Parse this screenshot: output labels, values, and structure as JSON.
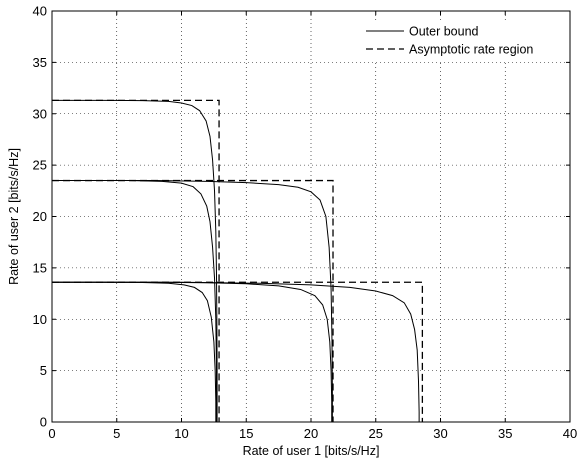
{
  "chart_data": {
    "type": "line",
    "title": "",
    "xlabel": "Rate of user 1 [bits/s/Hz]",
    "ylabel": "Rate of user 2 [bits/s/Hz]",
    "xlim": [
      0,
      40
    ],
    "ylim": [
      0,
      40
    ],
    "xticks": [
      0,
      5,
      10,
      15,
      20,
      25,
      30,
      35,
      40
    ],
    "yticks": [
      0,
      5,
      10,
      15,
      20,
      25,
      30,
      35,
      40
    ],
    "grid": true,
    "grid_style": "dotted",
    "legend_position": "top-right",
    "legend": [
      {
        "label": "Outer bound",
        "style": "solid"
      },
      {
        "label": "Asymptotic rate region",
        "style": "dashed"
      }
    ],
    "series": [
      {
        "style": "solid",
        "values": [
          [
            0,
            31.3
          ],
          [
            4,
            31.3
          ],
          [
            7,
            31.28
          ],
          [
            9,
            31.2
          ],
          [
            10,
            31.05
          ],
          [
            10.8,
            30.8
          ],
          [
            11.4,
            30.3
          ],
          [
            11.9,
            29.3
          ],
          [
            12.2,
            27.8
          ],
          [
            12.4,
            25.5
          ],
          [
            12.55,
            22.5
          ],
          [
            12.65,
            18.5
          ],
          [
            12.7,
            14.5
          ],
          [
            12.73,
            10
          ],
          [
            12.75,
            5
          ],
          [
            12.75,
            0
          ]
        ]
      },
      {
        "style": "solid",
        "values": [
          [
            0,
            23.5
          ],
          [
            6,
            23.5
          ],
          [
            8.5,
            23.42
          ],
          [
            10,
            23.25
          ],
          [
            10.9,
            22.9
          ],
          [
            11.5,
            22.2
          ],
          [
            11.95,
            21
          ],
          [
            12.2,
            19.5
          ],
          [
            12.4,
            17
          ],
          [
            12.55,
            14
          ],
          [
            12.65,
            10
          ],
          [
            12.7,
            5
          ],
          [
            12.7,
            0
          ]
        ]
      },
      {
        "style": "solid",
        "values": [
          [
            0,
            23.5
          ],
          [
            8,
            23.5
          ],
          [
            12,
            23.42
          ],
          [
            15,
            23.3
          ],
          [
            17.5,
            23.1
          ],
          [
            19,
            22.85
          ],
          [
            20,
            22.4
          ],
          [
            20.7,
            21.6
          ],
          [
            21.15,
            20
          ],
          [
            21.4,
            17
          ],
          [
            21.55,
            13
          ],
          [
            21.62,
            8
          ],
          [
            21.65,
            3
          ],
          [
            21.65,
            0
          ]
        ]
      },
      {
        "style": "solid",
        "values": [
          [
            0,
            13.6
          ],
          [
            4,
            13.6
          ],
          [
            7,
            13.58
          ],
          [
            9,
            13.5
          ],
          [
            10.2,
            13.35
          ],
          [
            11,
            13.1
          ],
          [
            11.6,
            12.6
          ],
          [
            12,
            11.8
          ],
          [
            12.3,
            10.2
          ],
          [
            12.5,
            7.8
          ],
          [
            12.6,
            5
          ],
          [
            12.65,
            2
          ],
          [
            12.65,
            0
          ]
        ]
      },
      {
        "style": "solid",
        "values": [
          [
            0,
            13.6
          ],
          [
            8,
            13.6
          ],
          [
            12,
            13.55
          ],
          [
            15,
            13.45
          ],
          [
            17.5,
            13.25
          ],
          [
            19.2,
            12.9
          ],
          [
            20.3,
            12.3
          ],
          [
            20.9,
            11.4
          ],
          [
            21.25,
            10
          ],
          [
            21.45,
            7.8
          ],
          [
            21.55,
            5
          ],
          [
            21.6,
            2
          ],
          [
            21.6,
            0
          ]
        ]
      },
      {
        "style": "solid",
        "values": [
          [
            0,
            13.6
          ],
          [
            10,
            13.6
          ],
          [
            16,
            13.5
          ],
          [
            20,
            13.35
          ],
          [
            23,
            13.1
          ],
          [
            25,
            12.75
          ],
          [
            26.3,
            12.3
          ],
          [
            27.2,
            11.6
          ],
          [
            27.7,
            10.5
          ],
          [
            28,
            9
          ],
          [
            28.2,
            7
          ],
          [
            28.3,
            4
          ],
          [
            28.35,
            1
          ],
          [
            28.35,
            0
          ]
        ]
      },
      {
        "style": "dashed",
        "values": [
          [
            0,
            31.3
          ],
          [
            12.9,
            31.3
          ],
          [
            12.9,
            0
          ]
        ]
      },
      {
        "style": "dashed",
        "values": [
          [
            0,
            23.5
          ],
          [
            21.7,
            23.5
          ],
          [
            21.7,
            0
          ]
        ]
      },
      {
        "style": "dashed",
        "values": [
          [
            0,
            13.6
          ],
          [
            28.6,
            13.6
          ],
          [
            28.6,
            0
          ]
        ]
      }
    ]
  }
}
